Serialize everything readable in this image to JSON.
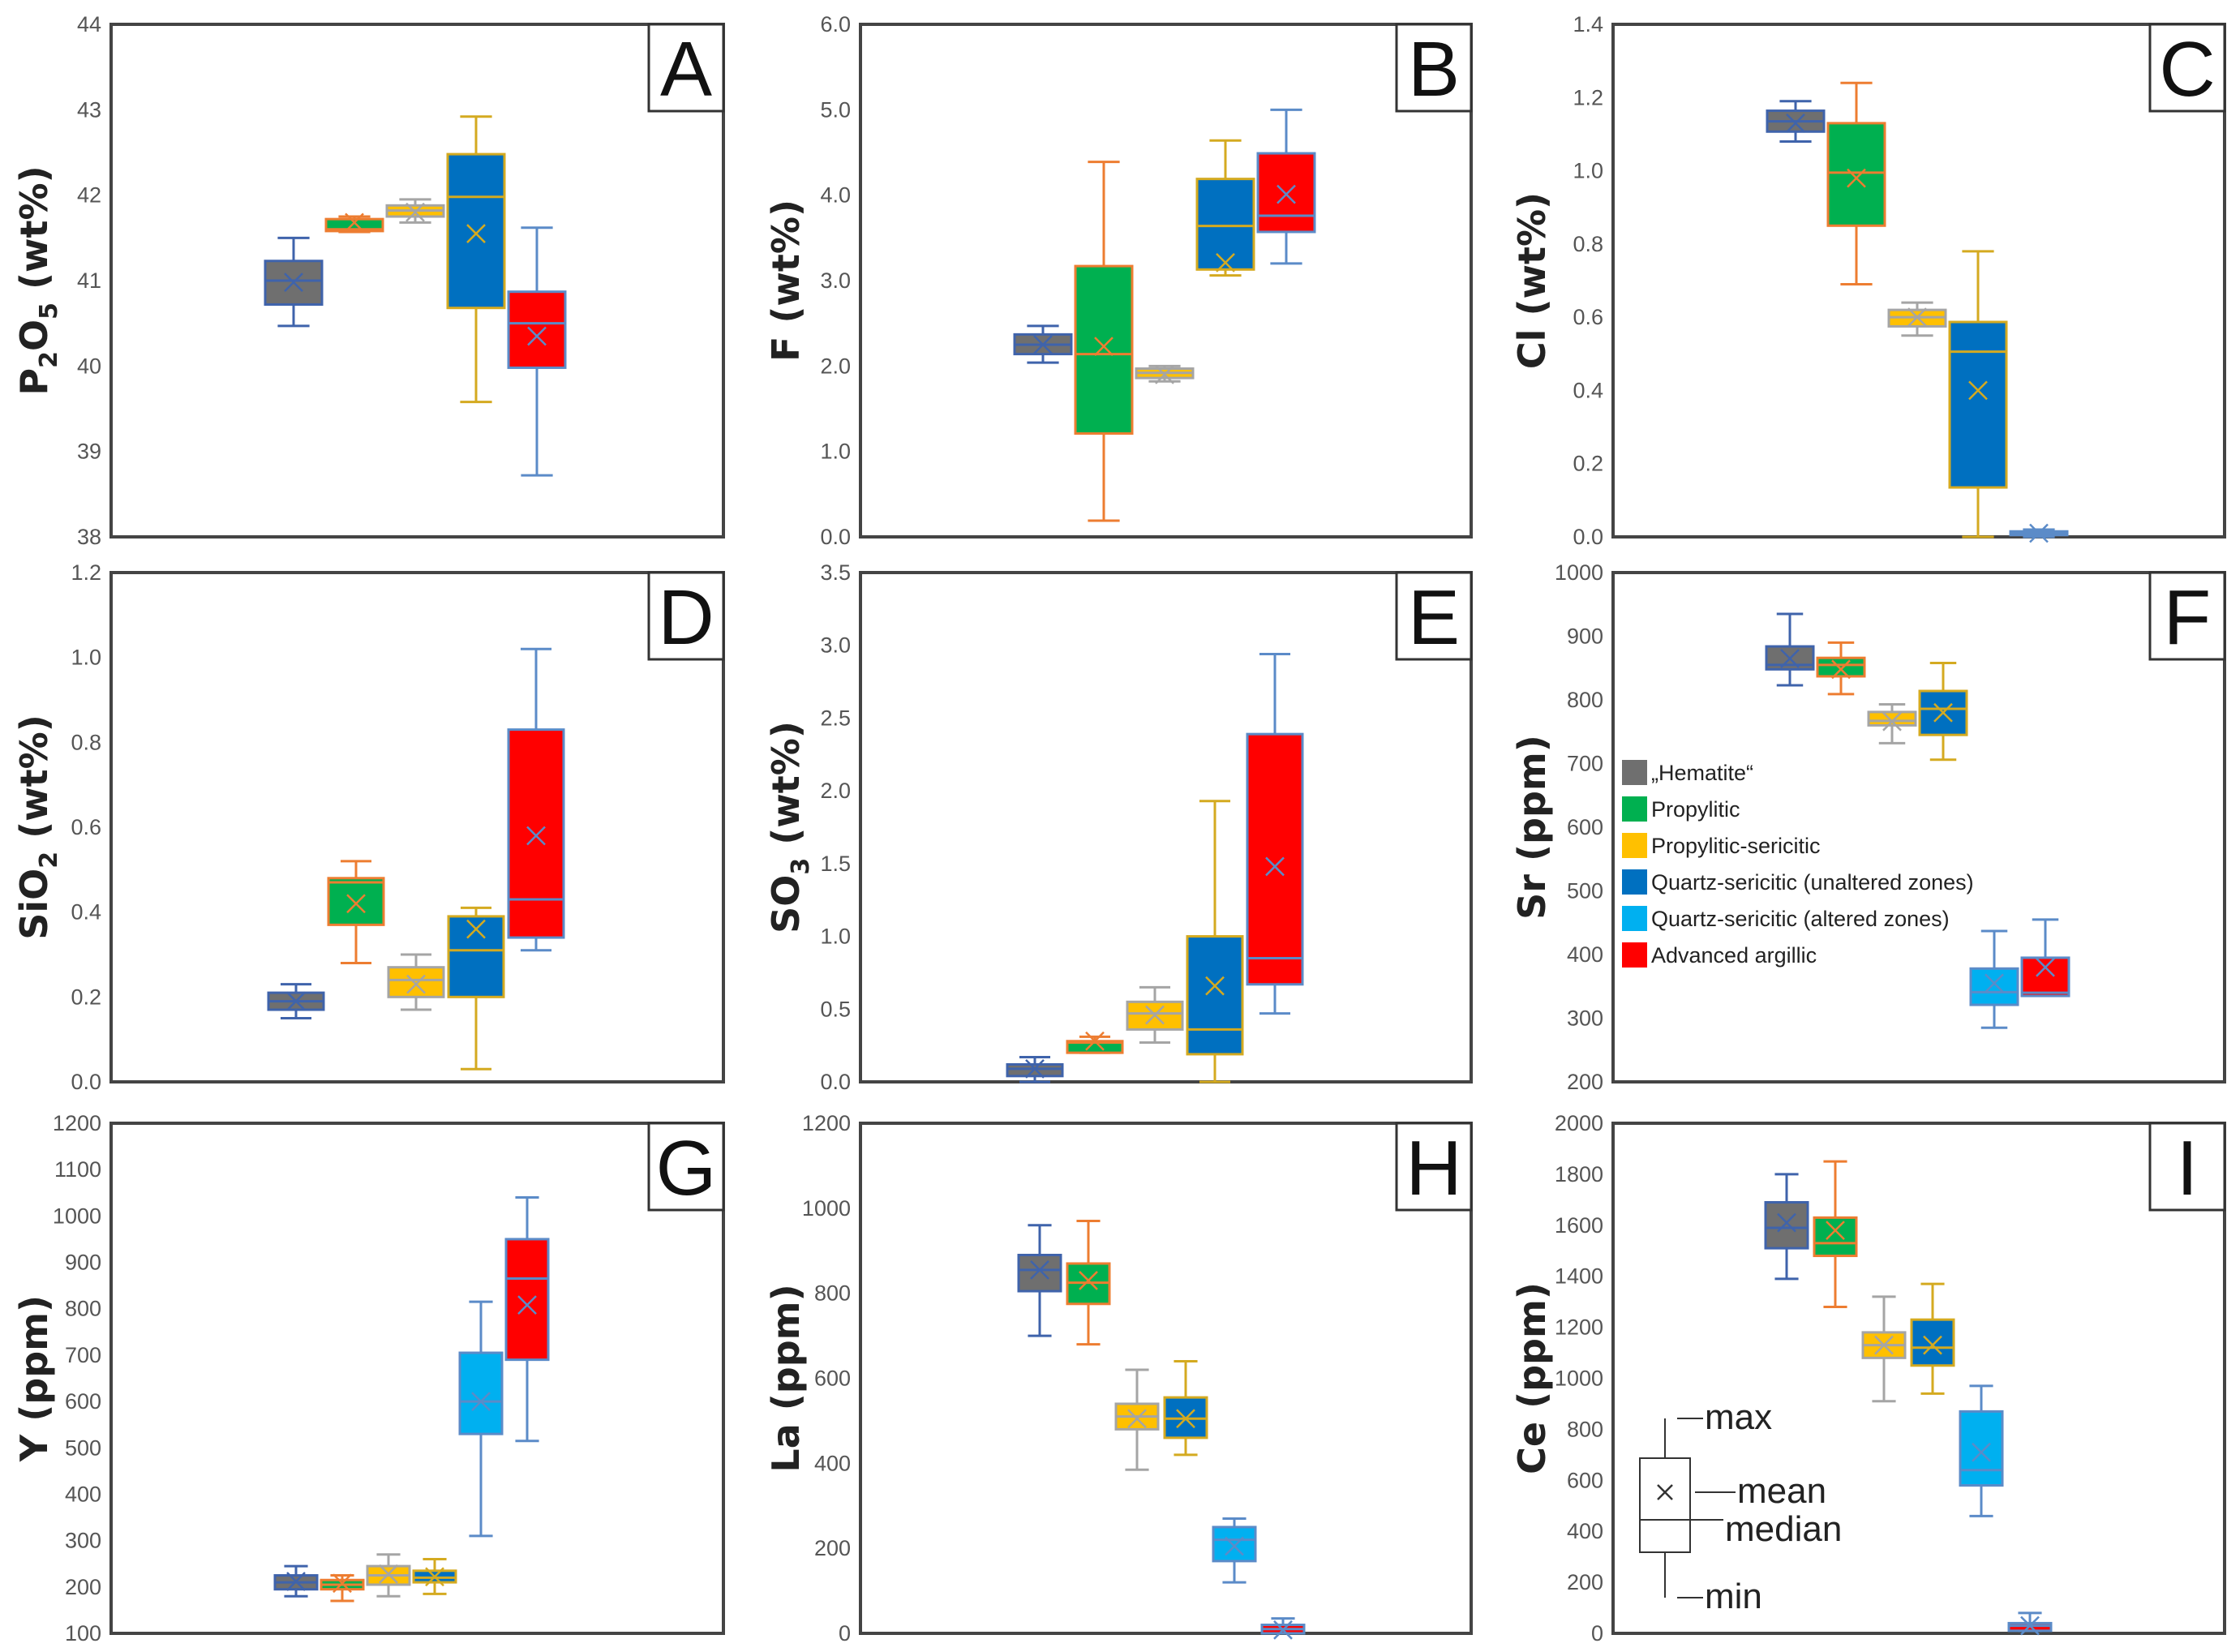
{
  "series_colors": {
    "hematite": {
      "fill": "#6f6f6f",
      "edge": "#3f63ab"
    },
    "propylitic": {
      "fill": "#00b050",
      "edge": "#ed7d31"
    },
    "propylitic_sericitic": {
      "fill": "#ffc000",
      "edge": "#a5a5a5"
    },
    "qs_unaltered": {
      "fill": "#0070c0",
      "edge": "#d4aa20"
    },
    "qs_altered": {
      "fill": "#00b0f0",
      "edge": "#5b8bc8"
    },
    "advanced_argillic": {
      "fill": "#ff0000",
      "edge": "#5b8bc8"
    }
  },
  "legend": [
    {
      "key": "hematite",
      "label": "„Hematite“",
      "color": "#6f6f6f"
    },
    {
      "key": "propylitic",
      "label": "Propylitic",
      "color": "#00b050"
    },
    {
      "key": "propylitic_sericitic",
      "label": "Propylitic-sericitic",
      "color": "#ffc000"
    },
    {
      "key": "qs_unaltered",
      "label": "Quartz-sericitic (unaltered zones)",
      "color": "#0070c0"
    },
    {
      "key": "qs_altered",
      "label": "Quartz-sericitic (altered zones)",
      "color": "#00b0f0"
    },
    {
      "key": "advanced_argillic",
      "label": "Advanced argillic",
      "color": "#ff0000"
    }
  ],
  "key_labels": [
    "max",
    "mean",
    "median",
    "min"
  ],
  "chart_data": [
    {
      "type": "box",
      "panel": "A",
      "ylabel_parts": [
        {
          "t": "P"
        },
        {
          "t": "2",
          "sub": true
        },
        {
          "t": "O"
        },
        {
          "t": "5",
          "sub": true
        },
        {
          "t": " (wt%)"
        }
      ],
      "ylim": [
        38,
        44
      ],
      "ticks": [
        "38",
        "39",
        "40",
        "41",
        "42",
        "43",
        "44"
      ],
      "tick_values": [
        38,
        39,
        40,
        41,
        42,
        43,
        44
      ],
      "boxes": [
        {
          "series": "hematite",
          "min": 40.47,
          "q1": 40.72,
          "median": 41.0,
          "q3": 41.23,
          "max": 41.5,
          "mean": 40.98
        },
        {
          "series": "propylitic",
          "min": 41.57,
          "q1": 41.58,
          "median": 41.6,
          "q3": 41.72,
          "max": 41.75,
          "mean": 41.68
        },
        {
          "series": "propylitic_sericitic",
          "min": 41.68,
          "q1": 41.75,
          "median": 41.82,
          "q3": 41.88,
          "max": 41.95,
          "mean": 41.8
        },
        {
          "series": "qs_unaltered",
          "min": 39.58,
          "q1": 40.68,
          "median": 41.98,
          "q3": 42.48,
          "max": 42.92,
          "mean": 41.55
        },
        {
          "series": "advanced_argillic",
          "min": 38.72,
          "q1": 39.98,
          "median": 40.5,
          "q3": 40.87,
          "max": 41.62,
          "mean": 40.35
        }
      ]
    },
    {
      "type": "box",
      "panel": "B",
      "ylabel_parts": [
        {
          "t": "F (wt%)"
        }
      ],
      "ylim": [
        0,
        6
      ],
      "ticks": [
        "0.0",
        "1.0",
        "2.0",
        "3.0",
        "4.0",
        "5.0",
        "6.0"
      ],
      "tick_values": [
        0,
        1,
        2,
        3,
        4,
        5,
        6
      ],
      "boxes": [
        {
          "series": "hematite",
          "min": 2.04,
          "q1": 2.14,
          "median": 2.25,
          "q3": 2.37,
          "max": 2.47,
          "mean": 2.25
        },
        {
          "series": "propylitic",
          "min": 0.19,
          "q1": 1.21,
          "median": 2.14,
          "q3": 3.17,
          "max": 4.39,
          "mean": 2.23
        },
        {
          "series": "propylitic_sericitic",
          "min": 1.82,
          "q1": 1.86,
          "median": 1.92,
          "q3": 1.97,
          "max": 2.0,
          "mean": 1.9
        },
        {
          "series": "qs_unaltered",
          "min": 3.06,
          "q1": 3.13,
          "median": 3.64,
          "q3": 4.19,
          "max": 4.64,
          "mean": 3.21
        },
        {
          "series": "advanced_argillic",
          "min": 3.2,
          "q1": 3.57,
          "median": 3.76,
          "q3": 4.49,
          "max": 5.0,
          "mean": 4.01
        }
      ]
    },
    {
      "type": "box",
      "panel": "C",
      "ylabel_parts": [
        {
          "t": "Cl (wt%)"
        }
      ],
      "ylim": [
        0,
        1.4
      ],
      "ticks": [
        "0.0",
        "0.2",
        "0.4",
        "0.6",
        "0.8",
        "1.0",
        "1.2",
        "1.4"
      ],
      "tick_values": [
        0,
        0.2,
        0.4,
        0.6,
        0.8,
        1.0,
        1.2,
        1.4
      ],
      "boxes": [
        {
          "series": "hematite",
          "min": 1.08,
          "q1": 1.107,
          "median": 1.135,
          "q3": 1.164,
          "max": 1.19,
          "mean": 1.13
        },
        {
          "series": "propylitic",
          "min": 0.69,
          "q1": 0.85,
          "median": 0.995,
          "q3": 1.13,
          "max": 1.24,
          "mean": 0.98
        },
        {
          "series": "propylitic_sericitic",
          "min": 0.55,
          "q1": 0.575,
          "median": 0.6,
          "q3": 0.62,
          "max": 0.64,
          "mean": 0.6
        },
        {
          "series": "qs_unaltered",
          "min": 0.0,
          "q1": 0.135,
          "median": 0.506,
          "q3": 0.587,
          "max": 0.78,
          "mean": 0.4
        },
        {
          "series": "advanced_argillic",
          "min": 0.0,
          "q1": 0.005,
          "median": 0.01,
          "q3": 0.015,
          "max": 0.02,
          "mean": 0.01
        }
      ]
    },
    {
      "type": "box",
      "panel": "D",
      "ylabel_parts": [
        {
          "t": "SiO"
        },
        {
          "t": "2",
          "sub": true
        },
        {
          "t": " (wt%)"
        }
      ],
      "ylim": [
        0,
        1.2
      ],
      "ticks": [
        "0.0",
        "0.2",
        "0.4",
        "0.6",
        "0.8",
        "1.0",
        "1.2"
      ],
      "tick_values": [
        0,
        0.2,
        0.4,
        0.6,
        0.8,
        1.0,
        1.2
      ],
      "boxes": [
        {
          "series": "hematite",
          "min": 0.15,
          "q1": 0.17,
          "median": 0.19,
          "q3": 0.21,
          "max": 0.23,
          "mean": 0.19
        },
        {
          "series": "propylitic",
          "min": 0.28,
          "q1": 0.37,
          "median": 0.47,
          "q3": 0.48,
          "max": 0.52,
          "mean": 0.42
        },
        {
          "series": "propylitic_sericitic",
          "min": 0.17,
          "q1": 0.2,
          "median": 0.24,
          "q3": 0.27,
          "max": 0.3,
          "mean": 0.23
        },
        {
          "series": "qs_unaltered",
          "min": 0.03,
          "q1": 0.2,
          "median": 0.31,
          "q3": 0.39,
          "max": 0.41,
          "mean": 0.36
        },
        {
          "series": "advanced_argillic",
          "min": 0.31,
          "q1": 0.34,
          "median": 0.43,
          "q3": 0.83,
          "max": 1.02,
          "mean": 0.58
        }
      ]
    },
    {
      "type": "box",
      "panel": "E",
      "ylabel_parts": [
        {
          "t": "SO"
        },
        {
          "t": "3",
          "sub": true
        },
        {
          "t": " (wt%)"
        }
      ],
      "ylim": [
        0,
        3.5
      ],
      "ticks": [
        "0.0",
        "0.5",
        "1.0",
        "1.5",
        "2.0",
        "2.5",
        "3.0",
        "3.5"
      ],
      "tick_values": [
        0,
        0.5,
        1.0,
        1.5,
        2.0,
        2.5,
        3.0,
        3.5
      ],
      "boxes": [
        {
          "series": "hematite",
          "min": 0.0,
          "q1": 0.04,
          "median": 0.09,
          "q3": 0.12,
          "max": 0.17,
          "mean": 0.09
        },
        {
          "series": "propylitic",
          "min": 0.2,
          "q1": 0.2,
          "median": 0.27,
          "q3": 0.28,
          "max": 0.31,
          "mean": 0.28
        },
        {
          "series": "propylitic_sericitic",
          "min": 0.27,
          "q1": 0.36,
          "median": 0.47,
          "q3": 0.55,
          "max": 0.65,
          "mean": 0.46
        },
        {
          "series": "qs_unaltered",
          "min": 0.0,
          "q1": 0.19,
          "median": 0.36,
          "q3": 1.0,
          "max": 1.93,
          "mean": 0.66
        },
        {
          "series": "advanced_argillic",
          "min": 0.47,
          "q1": 0.67,
          "median": 0.85,
          "q3": 2.39,
          "max": 2.94,
          "mean": 1.48
        }
      ]
    },
    {
      "type": "box",
      "panel": "F",
      "ylabel_parts": [
        {
          "t": "Sr (ppm)"
        }
      ],
      "ylim": [
        200,
        1000
      ],
      "ticks": [
        "200",
        "300",
        "400",
        "500",
        "600",
        "700",
        "800",
        "900",
        "1000"
      ],
      "tick_values": [
        200,
        300,
        400,
        500,
        600,
        700,
        800,
        900,
        1000
      ],
      "boxes": [
        {
          "series": "hematite",
          "min": 823,
          "q1": 848,
          "median": 855,
          "q3": 884,
          "max": 935,
          "mean": 865
        },
        {
          "series": "propylitic",
          "min": 809,
          "q1": 837,
          "median": 855,
          "q3": 866,
          "max": 890,
          "mean": 848
        },
        {
          "series": "propylitic_sericitic",
          "min": 732,
          "q1": 760,
          "median": 767,
          "q3": 781,
          "max": 793,
          "mean": 766
        },
        {
          "series": "qs_unaltered",
          "min": 706,
          "q1": 745,
          "median": 786,
          "q3": 814,
          "max": 858,
          "mean": 780
        },
        {
          "series": "qs_altered",
          "min": 285,
          "q1": 321,
          "median": 341,
          "q3": 378,
          "max": 437,
          "mean": 355
        },
        {
          "series": "advanced_argillic",
          "min": 335,
          "q1": 335,
          "median": 340,
          "q3": 395,
          "max": 455,
          "mean": 380
        }
      ]
    },
    {
      "type": "box",
      "panel": "G",
      "ylabel_parts": [
        {
          "t": "Y (ppm)"
        }
      ],
      "ylim": [
        100,
        1200
      ],
      "ticks": [
        "100",
        "200",
        "300",
        "400",
        "500",
        "600",
        "700",
        "800",
        "900",
        "1000",
        "1100",
        "1200"
      ],
      "tick_values": [
        100,
        200,
        300,
        400,
        500,
        600,
        700,
        800,
        900,
        1000,
        1100,
        1200
      ],
      "boxes": [
        {
          "series": "hematite",
          "min": 180,
          "q1": 195,
          "median": 210,
          "q3": 225,
          "max": 245,
          "mean": 212
        },
        {
          "series": "propylitic",
          "min": 170,
          "q1": 195,
          "median": 205,
          "q3": 215,
          "max": 225,
          "mean": 208
        },
        {
          "series": "propylitic_sericitic",
          "min": 180,
          "q1": 205,
          "median": 225,
          "q3": 245,
          "max": 270,
          "mean": 228
        },
        {
          "series": "qs_unaltered",
          "min": 185,
          "q1": 210,
          "median": 220,
          "q3": 235,
          "max": 260,
          "mean": 222
        },
        {
          "series": "qs_altered",
          "min": 310,
          "q1": 530,
          "median": 600,
          "q3": 705,
          "max": 815,
          "mean": 600
        },
        {
          "series": "advanced_argillic",
          "min": 515,
          "q1": 690,
          "median": 865,
          "q3": 950,
          "max": 1040,
          "mean": 808
        }
      ]
    },
    {
      "type": "box",
      "panel": "H",
      "ylabel_parts": [
        {
          "t": "La (ppm)"
        }
      ],
      "ylim": [
        0,
        1200
      ],
      "ticks": [
        "0",
        "200",
        "400",
        "600",
        "800",
        "1000",
        "1200"
      ],
      "tick_values": [
        0,
        200,
        400,
        600,
        800,
        1000,
        1200
      ],
      "boxes": [
        {
          "series": "hematite",
          "min": 700,
          "q1": 805,
          "median": 855,
          "q3": 890,
          "max": 960,
          "mean": 855
        },
        {
          "series": "propylitic",
          "min": 680,
          "q1": 775,
          "median": 825,
          "q3": 870,
          "max": 970,
          "mean": 830
        },
        {
          "series": "propylitic_sericitic",
          "min": 385,
          "q1": 480,
          "median": 510,
          "q3": 540,
          "max": 620,
          "mean": 505
        },
        {
          "series": "qs_unaltered",
          "min": 420,
          "q1": 460,
          "median": 505,
          "q3": 555,
          "max": 640,
          "mean": 505
        },
        {
          "series": "qs_altered",
          "min": 120,
          "q1": 170,
          "median": 220,
          "q3": 250,
          "max": 270,
          "mean": 205
        },
        {
          "series": "advanced_argillic",
          "min": 0,
          "q1": 0,
          "median": 10,
          "q3": 20,
          "max": 35,
          "mean": 8
        }
      ]
    },
    {
      "type": "box",
      "panel": "I",
      "ylabel_parts": [
        {
          "t": "Ce (ppm)"
        }
      ],
      "ylim": [
        0,
        2000
      ],
      "ticks": [
        "0",
        "200",
        "400",
        "600",
        "800",
        "1000",
        "1200",
        "1400",
        "1600",
        "1800",
        "2000"
      ],
      "tick_values": [
        0,
        200,
        400,
        600,
        800,
        1000,
        1200,
        1400,
        1600,
        1800,
        2000
      ],
      "boxes": [
        {
          "series": "hematite",
          "min": 1390,
          "q1": 1510,
          "median": 1590,
          "q3": 1690,
          "max": 1800,
          "mean": 1610
        },
        {
          "series": "propylitic",
          "min": 1280,
          "q1": 1480,
          "median": 1530,
          "q3": 1630,
          "max": 1850,
          "mean": 1580
        },
        {
          "series": "propylitic_sericitic",
          "min": 910,
          "q1": 1080,
          "median": 1130,
          "q3": 1180,
          "max": 1320,
          "mean": 1130
        },
        {
          "series": "qs_unaltered",
          "min": 940,
          "q1": 1050,
          "median": 1120,
          "q3": 1230,
          "max": 1370,
          "mean": 1130
        },
        {
          "series": "qs_altered",
          "min": 460,
          "q1": 580,
          "median": 640,
          "q3": 870,
          "max": 970,
          "mean": 710
        },
        {
          "series": "advanced_argillic",
          "min": 10,
          "q1": 10,
          "median": 30,
          "q3": 40,
          "max": 80,
          "mean": 30
        }
      ]
    }
  ]
}
